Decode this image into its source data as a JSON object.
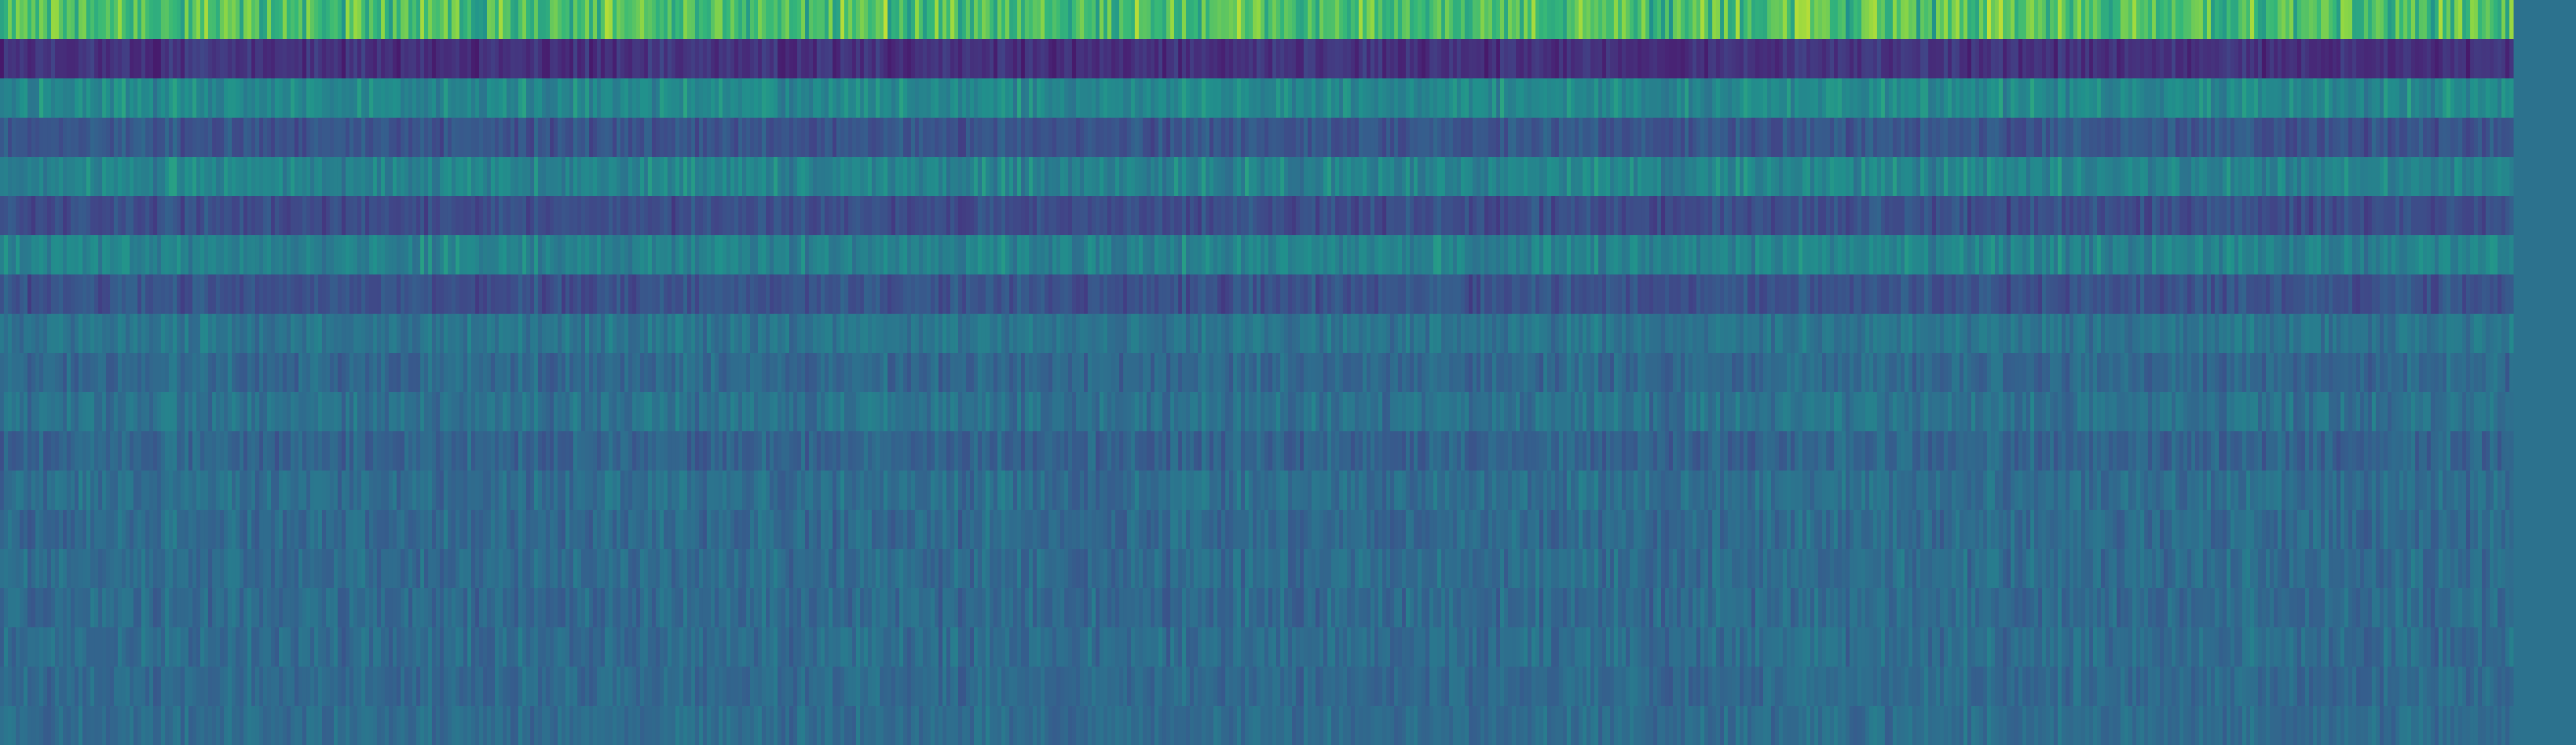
{
  "chart_data": {
    "type": "heatmap",
    "title": "",
    "xlabel": "",
    "ylabel": "",
    "colormap": "viridis",
    "background_color": "#2c728e",
    "n_rows": 19,
    "n_columns": 640,
    "value_range": [
      0,
      1
    ],
    "axes_visible": false,
    "grid": false,
    "legend": "none",
    "colorbar": "none",
    "row_profiles": [
      {
        "row": 1,
        "mean": 0.78,
        "spread": 0.1
      },
      {
        "row": 2,
        "mean": 0.18,
        "spread": 0.06
      },
      {
        "row": 3,
        "mean": 0.58,
        "spread": 0.08
      },
      {
        "row": 4,
        "mean": 0.33,
        "spread": 0.07
      },
      {
        "row": 5,
        "mean": 0.56,
        "spread": 0.08
      },
      {
        "row": 6,
        "mean": 0.3,
        "spread": 0.07
      },
      {
        "row": 7,
        "mean": 0.55,
        "spread": 0.08
      },
      {
        "row": 8,
        "mean": 0.32,
        "spread": 0.07
      },
      {
        "row": 9,
        "mean": 0.48,
        "spread": 0.07
      },
      {
        "row": 10,
        "mean": 0.42,
        "spread": 0.07
      },
      {
        "row": 11,
        "mean": 0.47,
        "spread": 0.07
      },
      {
        "row": 12,
        "mean": 0.4,
        "spread": 0.07
      },
      {
        "row": 13,
        "mean": 0.45,
        "spread": 0.07
      },
      {
        "row": 14,
        "mean": 0.43,
        "spread": 0.07
      },
      {
        "row": 15,
        "mean": 0.44,
        "spread": 0.07
      },
      {
        "row": 16,
        "mean": 0.43,
        "spread": 0.07
      },
      {
        "row": 17,
        "mean": 0.44,
        "spread": 0.07
      },
      {
        "row": 18,
        "mean": 0.43,
        "spread": 0.06
      },
      {
        "row": 19,
        "mean": 0.44,
        "spread": 0.06
      }
    ]
  }
}
